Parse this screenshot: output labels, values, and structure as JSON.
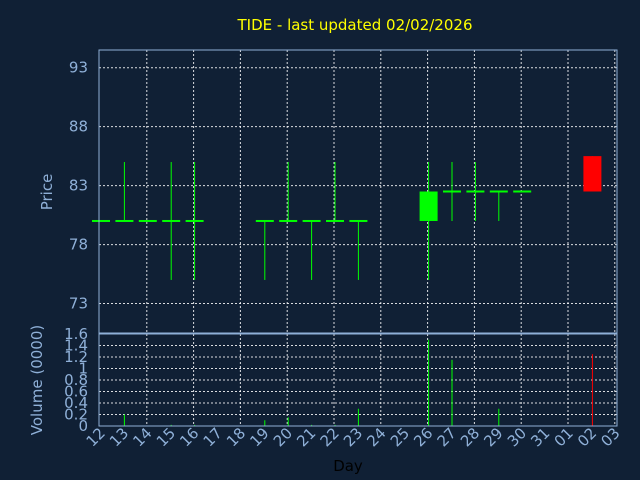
{
  "chart_data": {
    "type": "candlestick",
    "title": "TIDE - last updated 02/02/2026",
    "xlabel": "Day",
    "price_panel": {
      "ylabel": "Price",
      "yticks": [
        "73",
        "78",
        "83",
        "88",
        "93"
      ],
      "ylim": [
        70.5,
        94.5
      ]
    },
    "volume_panel": {
      "ylabel": "Volume (0000)",
      "yticks": [
        "0",
        "0.2",
        "0.4",
        "0.6",
        "0.8",
        "1",
        "1.2",
        "1.4",
        "1.6"
      ],
      "ylim": [
        0,
        1.6
      ]
    },
    "x_ticks": [
      "12",
      "13",
      "14",
      "15",
      "16",
      "17",
      "18",
      "19",
      "20",
      "21",
      "22",
      "23",
      "24",
      "25",
      "26",
      "27",
      "28",
      "29",
      "30",
      "31",
      "01",
      "02",
      "03"
    ],
    "colors": {
      "up": "#00ff00",
      "down": "#ff0000",
      "background": "#102035",
      "title": "#ffff00",
      "axis": "#8fb0d8"
    },
    "candles": [
      {
        "day": "12",
        "open": 80,
        "high": 80,
        "low": 80,
        "close": 80,
        "volume": 0
      },
      {
        "day": "13",
        "open": 80,
        "high": 85,
        "low": 80,
        "close": 80,
        "volume": 0.2
      },
      {
        "day": "14",
        "open": 80,
        "high": 80,
        "low": 80,
        "close": 80,
        "volume": 0
      },
      {
        "day": "15",
        "open": 80,
        "high": 85,
        "low": 75,
        "close": 80,
        "volume": 0.02
      },
      {
        "day": "16",
        "open": 80,
        "high": 85,
        "low": 75,
        "close": 80,
        "volume": 0.02
      },
      {
        "day": "19",
        "open": 80,
        "high": 80,
        "low": 75,
        "close": 80,
        "volume": 0.1
      },
      {
        "day": "20",
        "open": 80,
        "high": 85,
        "low": 80,
        "close": 80,
        "volume": 0.15
      },
      {
        "day": "21",
        "open": 80,
        "high": 80,
        "low": 75,
        "close": 80,
        "volume": 0.02
      },
      {
        "day": "22",
        "open": 80,
        "high": 85,
        "low": 80,
        "close": 80,
        "volume": 0.02
      },
      {
        "day": "23",
        "open": 80,
        "high": 80,
        "low": 75,
        "close": 80,
        "volume": 0.3
      },
      {
        "day": "26",
        "open": 80,
        "high": 85,
        "low": 75,
        "close": 82.5,
        "volume": 1.5
      },
      {
        "day": "27",
        "open": 82.5,
        "high": 85,
        "low": 80,
        "close": 82.5,
        "volume": 1.15
      },
      {
        "day": "28",
        "open": 82.5,
        "high": 85,
        "low": 80,
        "close": 82.5,
        "volume": 0
      },
      {
        "day": "29",
        "open": 82.5,
        "high": 82.5,
        "low": 80,
        "close": 82.5,
        "volume": 0.3
      },
      {
        "day": "30",
        "open": 82.5,
        "high": 82.5,
        "low": 82.5,
        "close": 82.5,
        "volume": 0
      },
      {
        "day": "02",
        "open": 85.5,
        "high": 85.5,
        "low": 82.5,
        "close": 82.5,
        "volume": 1.25
      }
    ]
  }
}
